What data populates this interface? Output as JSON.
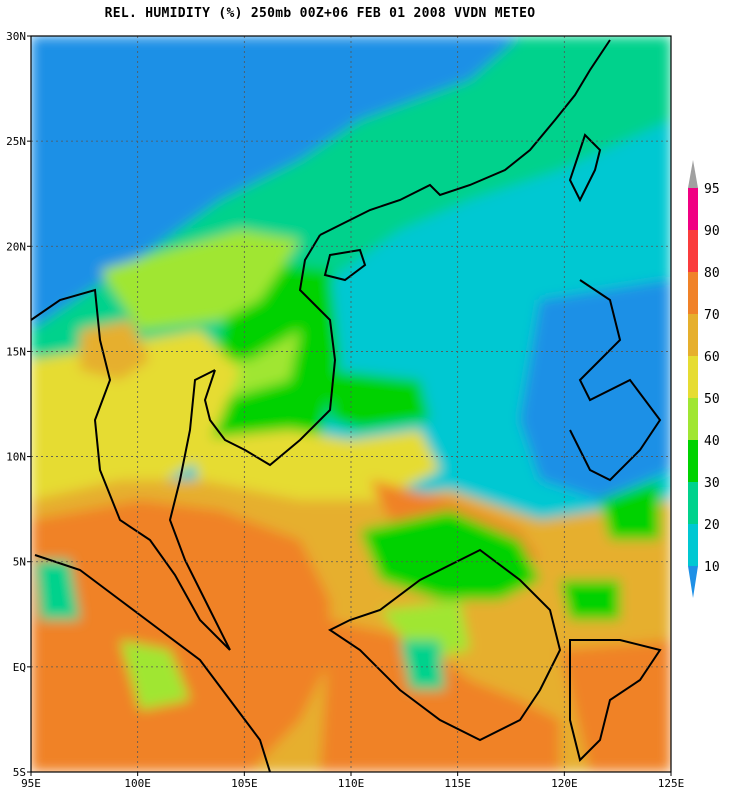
{
  "title": "REL. HUMIDITY (%) 250mb 00Z+06 FEB 01 2008 VVDN METEO",
  "map": {
    "lon_range": [
      95,
      125
    ],
    "lat_range": [
      -5,
      30
    ],
    "x_ticks": [
      "95E",
      "100E",
      "105E",
      "110E",
      "115E",
      "120E",
      "125E"
    ],
    "y_ticks": [
      "5S",
      "EQ",
      "5N",
      "10N",
      "15N",
      "20N",
      "25N",
      "30N"
    ],
    "gridlines": true
  },
  "colorbar": {
    "levels": [
      "10",
      "20",
      "30",
      "40",
      "50",
      "60",
      "70",
      "80",
      "90",
      "95"
    ],
    "colors": {
      "below_10": "#1e90e6",
      "10_20": "#00c8d2",
      "20_30": "#00d28c",
      "30_40": "#00d200",
      "40_50": "#a0e632",
      "50_60": "#e6dc32",
      "60_70": "#e6af2d",
      "70_80": "#f08228",
      "80_90": "#fa3c3c",
      "90_95": "#f00082",
      "above_95": "#a0a0a0"
    }
  }
}
